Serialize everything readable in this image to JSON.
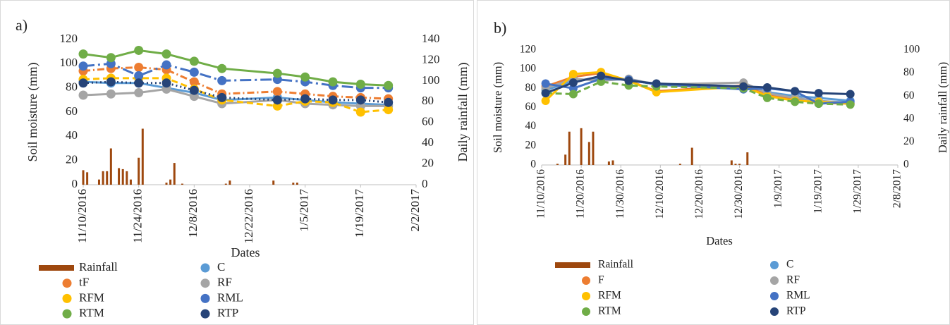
{
  "chart_data": [
    {
      "type": "line",
      "label": "a)",
      "ylabel": "Soil moisture (mm)",
      "y2label": "Daily rainfall (mm)",
      "xlabel": "Dates",
      "x": [
        "11/10/2016",
        "11/17/2016",
        "11/24/2016",
        "12/1/2016",
        "12/8/2016",
        "12/15/2016",
        "12/29/2016",
        "1/5/2017",
        "1/12/2017",
        "1/19/2017",
        "1/26/2017"
      ],
      "series": [
        {
          "name": "Rainfall",
          "type": "bar",
          "axis": "y2",
          "color": "#9E480E",
          "x": [
            "11/10/2016",
            "11/11/2016",
            "11/14/2016",
            "11/15/2016",
            "11/16/2016",
            "11/17/2016",
            "11/19/2016",
            "11/20/2016",
            "11/21/2016",
            "11/22/2016",
            "11/24/2016",
            "11/25/2016",
            "12/1/2016",
            "12/2/2016",
            "12/3/2016",
            "12/5/2016",
            "12/16/2016",
            "12/17/2016",
            "12/28/2016",
            "1/2/2017",
            "1/3/2017"
          ],
          "values": [
            14,
            12,
            5,
            13,
            13,
            35,
            16,
            15,
            13,
            5,
            26,
            54,
            2,
            5,
            21,
            1,
            1,
            4,
            4,
            2,
            2
          ]
        },
        {
          "name": "C",
          "color": "#5B9BD5",
          "linestyle": "solid",
          "values": [
            85,
            84,
            84,
            80,
            76,
            70,
            72,
            70,
            68,
            67,
            66
          ]
        },
        {
          "name": "tF",
          "color": "#ED7D31",
          "linestyle": "dashdot",
          "values": [
            94,
            96,
            97,
            95,
            85,
            75,
            77,
            75,
            73,
            72,
            71
          ]
        },
        {
          "name": "RF",
          "color": "#A5A5A5",
          "linestyle": "solid",
          "values": [
            74,
            75,
            76,
            79,
            73,
            67,
            70,
            67,
            66,
            65,
            65
          ]
        },
        {
          "name": "RFM",
          "color": "#FFC000",
          "linestyle": "dashed",
          "values": [
            87,
            88,
            88,
            88,
            79,
            70,
            65,
            69,
            68,
            60,
            62
          ]
        },
        {
          "name": "RML",
          "color": "#4472C4",
          "linestyle": "longdashdot",
          "values": [
            98,
            100,
            90,
            99,
            93,
            86,
            87,
            85,
            82,
            80,
            80
          ]
        },
        {
          "name": "RTM",
          "color": "#70AD47",
          "linestyle": "solid",
          "values": [
            108,
            105,
            111,
            108,
            102,
            96,
            92,
            89,
            85,
            83,
            82
          ]
        },
        {
          "name": "RTP",
          "color": "#264478",
          "linestyle": "dotted",
          "values": [
            84,
            85,
            84,
            84,
            78,
            72,
            70,
            71,
            70,
            70,
            68
          ]
        }
      ],
      "xlim": [
        "11/10/2016",
        "2/2/2017"
      ],
      "xticks": [
        "11/10/2016",
        "11/24/2016",
        "12/8/2016",
        "12/22/2016",
        "1/5/2017",
        "1/19/2017",
        "2/2/2017"
      ],
      "ylim": [
        0,
        120
      ],
      "yticks": [
        0,
        20,
        40,
        60,
        80,
        100,
        120
      ],
      "y2lim": [
        0,
        140
      ],
      "y2ticks": [
        0,
        20,
        40,
        60,
        80,
        100,
        120,
        140
      ],
      "grid": false,
      "legend": "bottom"
    },
    {
      "type": "line",
      "label": "b)",
      "ylabel": "Soil moisture (mm)",
      "y2label": "Daily rainfall (mm)",
      "xlabel": "Dates",
      "x": [
        "11/11/2016",
        "11/18/2016",
        "11/25/2016",
        "12/2/2016",
        "12/9/2016",
        "12/31/2016",
        "1/6/2017",
        "1/13/2017",
        "1/19/2017",
        "1/27/2017"
      ],
      "series": [
        {
          "name": "Rainfall",
          "type": "bar",
          "axis": "y2",
          "color": "#9E480E",
          "x": [
            "11/14/2016",
            "11/16/2016",
            "11/17/2016",
            "11/20/2016",
            "11/22/2016",
            "11/23/2016",
            "11/27/2016",
            "11/28/2016",
            "12/15/2016",
            "12/18/2016",
            "12/28/2016",
            "12/29/2016",
            "12/30/2016",
            "1/1/2017"
          ],
          "values": [
            1,
            9,
            29,
            32,
            20,
            29,
            3,
            4,
            1,
            15,
            4,
            1,
            1,
            11
          ]
        },
        {
          "name": "C",
          "color": "#5B9BD5",
          "linestyle": "solid",
          "values": [
            78,
            88,
            91,
            89,
            84,
            81,
            76,
            72,
            70,
            67
          ]
        },
        {
          "name": "F",
          "color": "#ED7D31",
          "linestyle": "solid",
          "values": [
            82,
            92,
            96,
            88,
            77,
            83,
            73,
            68,
            65,
            64
          ]
        },
        {
          "name": "RF",
          "color": "#A5A5A5",
          "linestyle": "solid",
          "values": [
            80,
            90,
            88,
            90,
            84,
            86,
            75,
            70,
            67,
            65
          ]
        },
        {
          "name": "RFM",
          "color": "#FFC000",
          "linestyle": "solid",
          "values": [
            67,
            95,
            97,
            88,
            76,
            82,
            72,
            67,
            66,
            64
          ]
        },
        {
          "name": "RML",
          "color": "#4472C4",
          "linestyle": "solid",
          "values": [
            85,
            80,
            90,
            89,
            84,
            79,
            80,
            77,
            64,
            66
          ]
        },
        {
          "name": "RTM",
          "color": "#70AD47",
          "linestyle": "dashed",
          "values": [
            75,
            74,
            87,
            83,
            82,
            80,
            70,
            66,
            64,
            63
          ]
        },
        {
          "name": "RTP",
          "color": "#264478",
          "linestyle": "solid",
          "values": [
            75,
            86,
            93,
            88,
            85,
            82,
            81,
            77,
            75,
            74
          ]
        }
      ],
      "xlim": [
        "11/10/2016",
        "2/8/2017"
      ],
      "xticks": [
        "11/10/2016",
        "11/20/2016",
        "11/30/2016",
        "12/10/2016",
        "12/20/2016",
        "12/30/2016",
        "1/9/2017",
        "1/19/2017",
        "1/29/2017",
        "2/8/2017"
      ],
      "ylim": [
        0,
        120
      ],
      "yticks": [
        0,
        20,
        40,
        60,
        80,
        100,
        120
      ],
      "y2lim": [
        0,
        100
      ],
      "y2ticks": [
        0,
        20,
        40,
        60,
        80,
        100
      ],
      "grid": false,
      "legend": "bottom"
    }
  ]
}
